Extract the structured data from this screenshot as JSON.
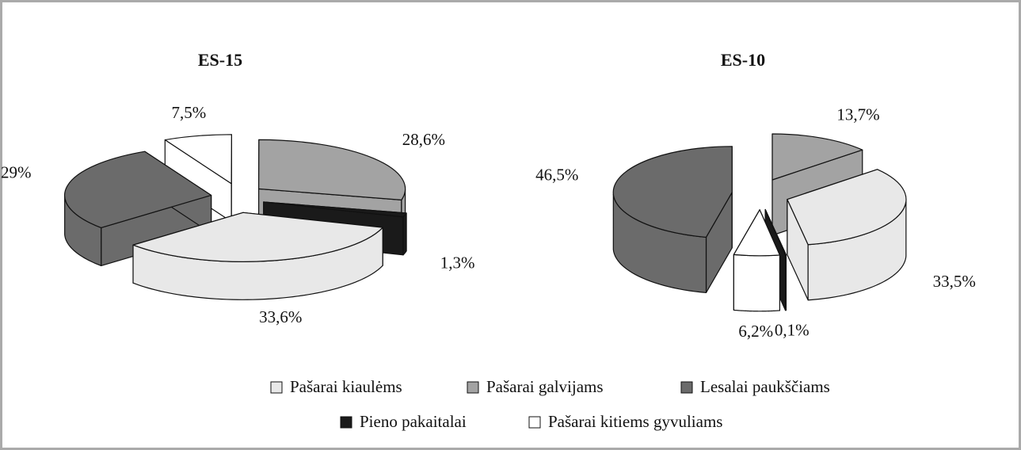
{
  "chart_data": [
    {
      "type": "pie",
      "title": "ES-15",
      "categories": [
        "Pašarai kiaulėms",
        "Pašarai galvijams",
        "Lesalai paukščiams",
        "Pieno pakaitalai",
        "Pašarai kitiems gyvuliams"
      ],
      "values": [
        33.6,
        28.6,
        29,
        1.3,
        7.5
      ],
      "value_labels": [
        "33,6%",
        "28,6%",
        "29%",
        "1,3%",
        "7,5%"
      ],
      "colors": [
        "#e8e8e8",
        "#a3a3a3",
        "#6b6b6b",
        "#1a1a1a",
        "#ffffff"
      ]
    },
    {
      "type": "pie",
      "title": "ES-10",
      "categories": [
        "Pašarai kiaulėms",
        "Pašarai galvijams",
        "Lesalai paukščiams",
        "Pieno pakaitalai",
        "Pašarai kitiems gyvuliams"
      ],
      "values": [
        33.5,
        13.7,
        46.5,
        0.1,
        6.2
      ],
      "value_labels": [
        "33,5%",
        "13,7%",
        "46,5%",
        "0,1%",
        "6,2%"
      ],
      "colors": [
        "#e8e8e8",
        "#a3a3a3",
        "#6b6b6b",
        "#1a1a1a",
        "#ffffff"
      ]
    }
  ]
}
